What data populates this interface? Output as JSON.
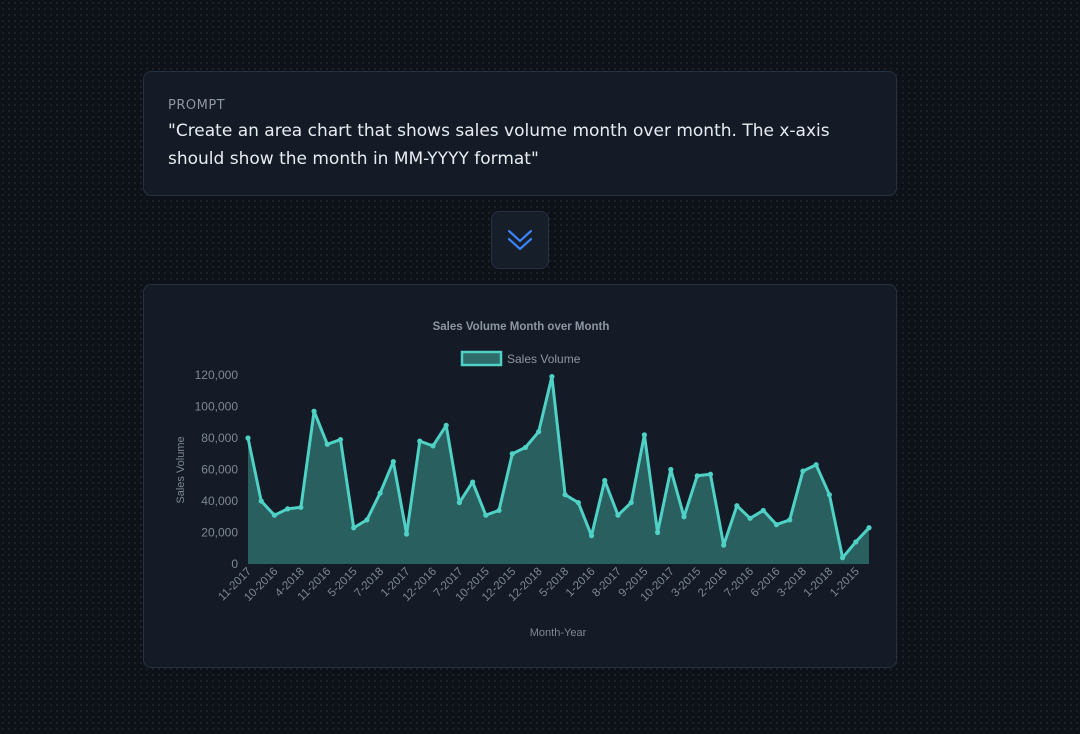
{
  "prompt": {
    "label": "PROMPT",
    "text": "\"Create an area chart that shows sales volume month over month. The x-axis\nshould show the month in MM-YYYY format\""
  },
  "icons": {
    "transition": "double-chevron-down-icon"
  },
  "colors": {
    "accent": "#3b82f6",
    "series": "#4fd1c5",
    "area": "#2e6b6a"
  },
  "chart_data": {
    "type": "area",
    "title": "Sales Volume Month over Month",
    "xlabel": "Month-Year",
    "ylabel": "Sales Volume",
    "ylim": [
      0,
      120000
    ],
    "yticks": [
      0,
      20000,
      40000,
      60000,
      80000,
      100000,
      120000
    ],
    "ytick_labels": [
      "0",
      "20,000",
      "40,000",
      "60,000",
      "80,000",
      "100,000",
      "120,000"
    ],
    "legend_position": "top-center",
    "grid": false,
    "x_tick_labels": [
      "11-2017",
      "10-2016",
      "4-2018",
      "11-2016",
      "5-2015",
      "7-2018",
      "1-2017",
      "12-2016",
      "7-2017",
      "10-2015",
      "12-2015",
      "12-2018",
      "5-2018",
      "1-2016",
      "8-2017",
      "9-2015",
      "10-2017",
      "3-2015",
      "2-2016",
      "7-2016",
      "6-2016",
      "3-2018",
      "1-2018",
      "1-2015"
    ],
    "series": [
      {
        "name": "Sales Volume",
        "values": [
          80000,
          40000,
          31000,
          35000,
          36000,
          97000,
          76000,
          79000,
          23000,
          28000,
          45000,
          65000,
          19000,
          78000,
          75000,
          88000,
          39000,
          52000,
          31000,
          34000,
          70000,
          74000,
          84000,
          119000,
          44000,
          39000,
          18000,
          53000,
          31000,
          39000,
          82000,
          20000,
          60000,
          30000,
          56000,
          57000,
          12000,
          37000,
          29000,
          34000,
          25000,
          28000,
          59000,
          63000,
          44000,
          4000,
          14000,
          23000
        ]
      }
    ]
  }
}
